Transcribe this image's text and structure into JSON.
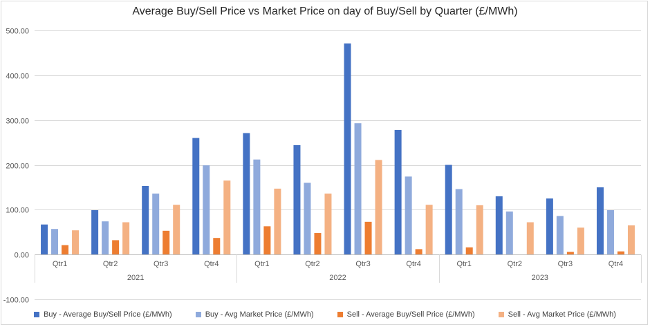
{
  "chart_data": {
    "type": "bar",
    "title": "Average Buy/Sell Price vs Market Price on day of Buy/Sell by Quarter (£/MWh)",
    "xlabel": "",
    "ylabel": "",
    "ylim": [
      -100,
      500
    ],
    "yticks": [
      -100,
      0,
      100,
      200,
      300,
      400,
      500
    ],
    "ytick_labels": [
      "-100.00",
      "0.00",
      "100.00",
      "200.00",
      "300.00",
      "400.00",
      "500.00"
    ],
    "grid": true,
    "legend_position": "bottom",
    "groups": [
      {
        "label": "2021",
        "quarters": [
          "Qtr1",
          "Qtr2",
          "Qtr3",
          "Qtr4"
        ]
      },
      {
        "label": "2022",
        "quarters": [
          "Qtr1",
          "Qtr2",
          "Qtr3",
          "Qtr4"
        ]
      },
      {
        "label": "2023",
        "quarters": [
          "Qtr1",
          "Qtr2",
          "Qtr3",
          "Qtr4"
        ]
      }
    ],
    "series": [
      {
        "name": "Buy - Average Buy/Sell Price (£/MWh)",
        "color": "#4472c4",
        "values": [
          67,
          99,
          153,
          260,
          271,
          244,
          471,
          278,
          200,
          130,
          125,
          150
        ]
      },
      {
        "name": "Buy - Avg Market Price (£/MWh)",
        "color": "#8faadc",
        "values": [
          57,
          74,
          136,
          199,
          212,
          160,
          293,
          174,
          146,
          96,
          86,
          99
        ]
      },
      {
        "name": "Sell - Average Buy/Sell Price (£/MWh)",
        "color": "#ed7d31",
        "values": [
          21,
          32,
          53,
          37,
          63,
          48,
          73,
          12,
          16,
          0,
          6,
          7
        ]
      },
      {
        "name": "Sell - Avg Market Price (£/MWh)",
        "color": "#f4b183",
        "values": [
          54,
          72,
          111,
          165,
          147,
          136,
          211,
          111,
          110,
          72,
          60,
          65
        ]
      }
    ]
  }
}
